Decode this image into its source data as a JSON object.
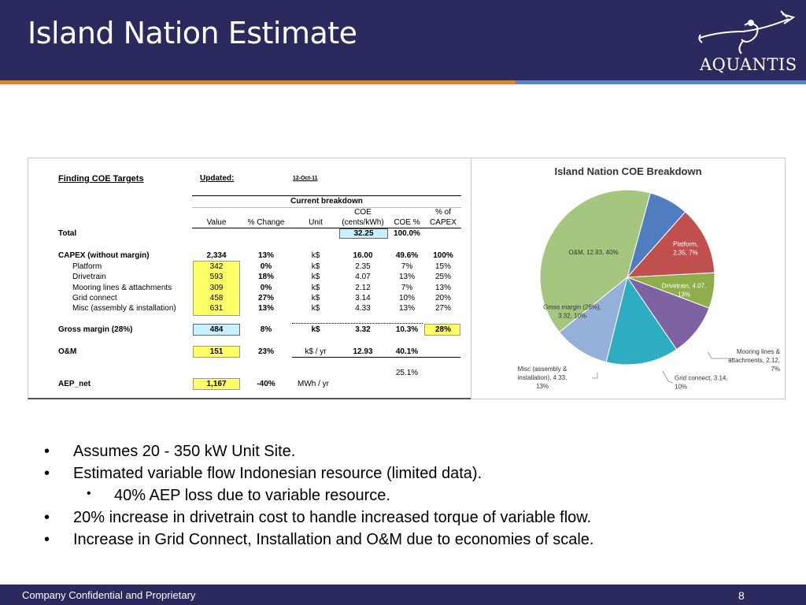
{
  "header": {
    "title": "Island Nation Estimate",
    "logo_text": "AQUANTIS",
    "logo_icon": "trident-mermaid-icon"
  },
  "table": {
    "title": "Finding COE Targets",
    "updated_label": "Updated:",
    "updated_value": "12-Oct-11",
    "group_header": "Current breakdown",
    "col_value": "Value",
    "col_change": "% Change",
    "col_unit": "Unit",
    "col_coe_1": "COE",
    "col_coe_2": "(cents/kWh)",
    "col_coepct": "COE %",
    "col_capex_1": "% of",
    "col_capex_2": "CAPEX",
    "total": {
      "label": "Total",
      "coe": "32.25",
      "coepct": "100.0%"
    },
    "capex": {
      "label": "CAPEX (without margin)",
      "value": "2,334",
      "change": "13%",
      "unit": "k$",
      "coe": "16.00",
      "coepct": "49.6%",
      "capexpct": "100%"
    },
    "rows": [
      {
        "label": "Platform",
        "value": "342",
        "change": "0%",
        "unit": "k$",
        "coe": "2.35",
        "coepct": "7%",
        "capexpct": "15%"
      },
      {
        "label": "Drivetrain",
        "value": "593",
        "change": "18%",
        "unit": "k$",
        "coe": "4.07",
        "coepct": "13%",
        "capexpct": "25%"
      },
      {
        "label": "Mooring lines & attachments",
        "value": "309",
        "change": "0%",
        "unit": "k$",
        "coe": "2.12",
        "coepct": "7%",
        "capexpct": "13%"
      },
      {
        "label": "Grid connect",
        "value": "458",
        "change": "27%",
        "unit": "k$",
        "coe": "3.14",
        "coepct": "10%",
        "capexpct": "20%"
      },
      {
        "label": "Misc (assembly & installation)",
        "value": "631",
        "change": "13%",
        "unit": "k$",
        "coe": "4.33",
        "coepct": "13%",
        "capexpct": "27%"
      }
    ],
    "margin": {
      "label": "Gross margin (28%)",
      "value": "484",
      "change": "8%",
      "unit": "k$",
      "coe": "3.32",
      "coepct": "10.3%",
      "capexpct": "28%"
    },
    "om": {
      "label": "O&M",
      "value": "151",
      "change": "23%",
      "unit": "k$ / yr",
      "coe": "12.93",
      "coepct": "40.1%"
    },
    "extra_pct": "25.1%",
    "aep": {
      "label": "AEP_net",
      "value": "1,167",
      "change": "-40%",
      "unit": "MWh / yr"
    },
    "highlight_yellow": "#ffff66",
    "highlight_cyan": "#c6efff"
  },
  "chart_data": {
    "type": "pie",
    "title": "Island Nation COE Breakdown",
    "series": [
      {
        "label_lines": [
          "O&M, 12.93, 40%"
        ],
        "value": 12.93,
        "color": "#a5c67f"
      },
      {
        "label_lines": [
          "Platform,",
          "2.35, 7%"
        ],
        "value": 2.35,
        "color": "#4f7dbf"
      },
      {
        "label_lines": [
          "Drivetrain, 4.07,",
          "13%"
        ],
        "value": 4.07,
        "color": "#c0504d"
      },
      {
        "label_lines": [
          "Mooring lines &",
          "attachments, 2.12,",
          "7%"
        ],
        "value": 2.12,
        "color": "#8fae4b"
      },
      {
        "label_lines": [
          "Grid connect, 3.14,",
          "10%"
        ],
        "value": 3.14,
        "color": "#7e62a2"
      },
      {
        "label_lines": [
          "Misc (assembly &",
          "installation), 4.33,",
          "13%"
        ],
        "value": 4.33,
        "color": "#2eadc2"
      },
      {
        "label_lines": [
          "Gross margin (28%),",
          "3.32, 10%"
        ],
        "value": 3.32,
        "color": "#95b0d9"
      }
    ]
  },
  "bullets": [
    {
      "text": "Assumes 20  - 350 kW Unit Site.",
      "level": 1
    },
    {
      "text": "Estimated variable flow Indonesian resource (limited data).",
      "level": 1
    },
    {
      "text": "40% AEP loss due to variable resource.",
      "level": 2
    },
    {
      "text": "20% increase in drivetrain cost to handle increased torque of variable flow.",
      "level": 1
    },
    {
      "text": "Increase in Grid Connect, Installation and O&M due to economies of scale.",
      "level": 1
    }
  ],
  "bullet_glyph": "•",
  "footer": {
    "text": "Company Confidential and Proprietary",
    "page": "8"
  }
}
